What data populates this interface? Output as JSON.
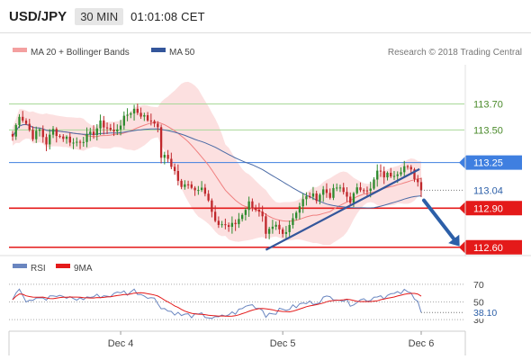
{
  "header": {
    "symbol": "USD/JPY",
    "timeframe": "30 MIN",
    "time": "01:01:08 CET"
  },
  "legend": {
    "ma20": "MA 20 + Bollinger Bands",
    "ma50": "MA 50",
    "credit": "Research © 2018 Trading Central",
    "rsi": "RSI",
    "ma9": "9MA"
  },
  "colors": {
    "ma20": "#f08080",
    "band_fill": "#fbd5d5",
    "ma50": "#4a6aa5",
    "up": "#2e8b2e",
    "down": "#c0282c",
    "resistance_green": "#a8d898",
    "line_blue": "#3f7fe0",
    "support_red": "#e41a1a",
    "trend_line": "#34569b",
    "arrow": "#2c5fa8"
  },
  "chart_data": {
    "type": "candlestick",
    "ylim": [
      112.55,
      114.0
    ],
    "x_ticks": [
      "Dec 4",
      "Dec 5",
      "Dec 6"
    ],
    "levels": [
      {
        "label": "113.70",
        "value": 113.7,
        "kind": "resistance"
      },
      {
        "label": "113.50",
        "value": 113.5,
        "kind": "resistance"
      },
      {
        "label": "113.25",
        "value": 113.25,
        "kind": "pivot"
      },
      {
        "label": "112.90",
        "value": 112.9,
        "kind": "support"
      },
      {
        "label": "112.60",
        "value": 112.6,
        "kind": "support"
      }
    ],
    "current_price_label": "113.04",
    "keypoints": [
      [
        0,
        113.45
      ],
      [
        2,
        113.62
      ],
      [
        4,
        113.55
      ],
      [
        6,
        113.45
      ],
      [
        8,
        113.5
      ],
      [
        10,
        113.4
      ],
      [
        12,
        113.5
      ],
      [
        14,
        113.45
      ],
      [
        16,
        113.44
      ],
      [
        18,
        113.4
      ],
      [
        21,
        113.43
      ],
      [
        24,
        113.48
      ],
      [
        26,
        113.55
      ],
      [
        28,
        113.52
      ],
      [
        30,
        113.48
      ],
      [
        32,
        113.55
      ],
      [
        34,
        113.62
      ],
      [
        36,
        113.66
      ],
      [
        38,
        113.62
      ],
      [
        40,
        113.58
      ],
      [
        42,
        113.57
      ],
      [
        43,
        113.5
      ],
      [
        44,
        113.3
      ],
      [
        46,
        113.28
      ],
      [
        48,
        113.18
      ],
      [
        50,
        113.05
      ],
      [
        52,
        113.1
      ],
      [
        54,
        113.04
      ],
      [
        56,
        113.08
      ],
      [
        58,
        112.95
      ],
      [
        60,
        112.78
      ],
      [
        62,
        112.78
      ],
      [
        64,
        112.76
      ],
      [
        66,
        112.78
      ],
      [
        68,
        112.86
      ],
      [
        70,
        112.94
      ],
      [
        72,
        112.9
      ],
      [
        74,
        112.82
      ],
      [
        75,
        112.68
      ],
      [
        76,
        112.72
      ],
      [
        78,
        112.76
      ],
      [
        80,
        112.7
      ],
      [
        82,
        112.78
      ],
      [
        84,
        112.88
      ],
      [
        86,
        112.96
      ],
      [
        88,
        113.0
      ],
      [
        90,
        112.98
      ],
      [
        92,
        113.04
      ],
      [
        94,
        113.0
      ],
      [
        96,
        113.06
      ],
      [
        98,
        113.02
      ],
      [
        100,
        112.96
      ],
      [
        102,
        113.04
      ],
      [
        104,
        113.06
      ],
      [
        106,
        113.04
      ],
      [
        108,
        113.18
      ],
      [
        110,
        113.15
      ],
      [
        112,
        113.16
      ],
      [
        114,
        113.18
      ],
      [
        116,
        113.22
      ],
      [
        118,
        113.18
      ],
      [
        120,
        113.1
      ],
      [
        121,
        113.06
      ]
    ],
    "rsi": {
      "ylim": [
        25,
        80
      ],
      "levels": [
        70,
        50,
        30
      ],
      "current_label": "38.10",
      "keypoints": [
        [
          0,
          55
        ],
        [
          2,
          67
        ],
        [
          4,
          52
        ],
        [
          6,
          54
        ],
        [
          8,
          57
        ],
        [
          10,
          53
        ],
        [
          12,
          57
        ],
        [
          14,
          55
        ],
        [
          16,
          55
        ],
        [
          18,
          54
        ],
        [
          20,
          53
        ],
        [
          22,
          55
        ],
        [
          24,
          56
        ],
        [
          26,
          57
        ],
        [
          28,
          57
        ],
        [
          30,
          58
        ],
        [
          32,
          62
        ],
        [
          34,
          60
        ],
        [
          36,
          63
        ],
        [
          38,
          59
        ],
        [
          40,
          57
        ],
        [
          42,
          53
        ],
        [
          44,
          45
        ],
        [
          46,
          40
        ],
        [
          48,
          38
        ],
        [
          50,
          35
        ],
        [
          52,
          35
        ],
        [
          54,
          34
        ],
        [
          56,
          35
        ],
        [
          58,
          33
        ],
        [
          60,
          31
        ],
        [
          62,
          33
        ],
        [
          64,
          36
        ],
        [
          66,
          38
        ],
        [
          68,
          42
        ],
        [
          70,
          47
        ],
        [
          72,
          45
        ],
        [
          74,
          41
        ],
        [
          75,
          35
        ],
        [
          76,
          37
        ],
        [
          78,
          39
        ],
        [
          80,
          41
        ],
        [
          82,
          43
        ],
        [
          84,
          45
        ],
        [
          86,
          48
        ],
        [
          88,
          49
        ],
        [
          90,
          50
        ],
        [
          92,
          54
        ],
        [
          94,
          55
        ],
        [
          96,
          55
        ],
        [
          98,
          52
        ],
        [
          100,
          48
        ],
        [
          102,
          51
        ],
        [
          104,
          53
        ],
        [
          106,
          53
        ],
        [
          108,
          58
        ],
        [
          110,
          56
        ],
        [
          112,
          58
        ],
        [
          114,
          59
        ],
        [
          116,
          62
        ],
        [
          118,
          59
        ],
        [
          120,
          53
        ],
        [
          121,
          38
        ]
      ]
    }
  }
}
